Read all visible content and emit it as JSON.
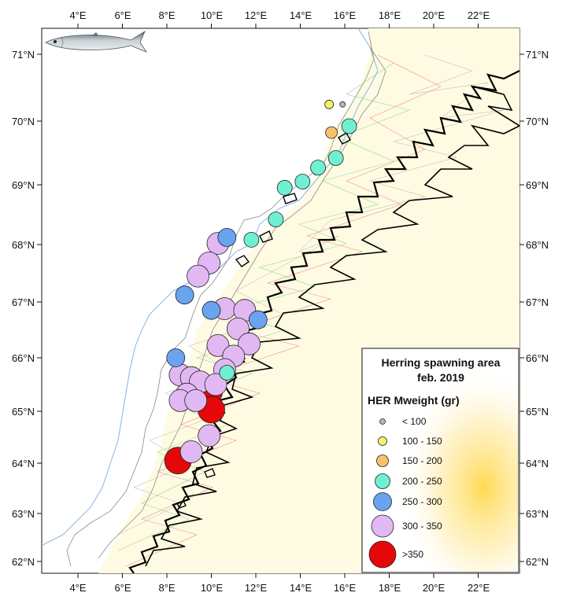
{
  "legend": {
    "title": "Herring spawning area",
    "subtitle": "feb. 2019",
    "variable": "HER Mweight (gr)",
    "classes": [
      {
        "label": "< 100",
        "color": "#b9b9b9"
      },
      {
        "label": "100 - 150",
        "color": "#f7f26b"
      },
      {
        "label": "150 - 200",
        "color": "#f5c16b"
      },
      {
        "label": "200 - 250",
        "color": "#6ff0d2"
      },
      {
        "label": "250 - 300",
        "color": "#6aa3ef"
      },
      {
        "label": "300 - 350",
        "color": "#e2b8f3"
      },
      {
        "label": ">350",
        "color": "#e4080a"
      }
    ]
  },
  "axes": {
    "x_ticks": [
      "4°E",
      "6°E",
      "8°E",
      "10°E",
      "12°E",
      "14°E",
      "16°E",
      "18°E",
      "20°E",
      "22°E"
    ],
    "y_ticks": [
      "71°N",
      "70°N",
      "69°N",
      "68°N",
      "67°N",
      "66°N",
      "65°N",
      "64°N",
      "63°N",
      "62°N"
    ]
  },
  "colors": {
    "land": "#fffbe2",
    "sea": "#ffffff",
    "coast": "#000000",
    "contour": "#8a8a8a",
    "depth_line": "#8ab3e6",
    "legend_glow": "#ffd84a"
  },
  "icon": "herring-fish-icon",
  "chart_data": {
    "type": "scatter",
    "xlabel": "",
    "ylabel": "",
    "xlim": [
      2.6,
      23.8
    ],
    "ylim": [
      61.85,
      71.45
    ],
    "size_variable": "HER Mweight (gr)",
    "classes": [
      "< 100",
      "100 - 150",
      "150 - 200",
      "200 - 250",
      "250 - 300",
      "300 - 350",
      ">350"
    ],
    "points": [
      {
        "lon": 15.9,
        "lat": 70.25,
        "class": 0
      },
      {
        "lon": 15.3,
        "lat": 70.25,
        "class": 1
      },
      {
        "lon": 15.4,
        "lat": 69.82,
        "class": 2
      },
      {
        "lon": 16.2,
        "lat": 69.92,
        "class": 3
      },
      {
        "lon": 15.6,
        "lat": 69.42,
        "class": 3
      },
      {
        "lon": 14.8,
        "lat": 69.27,
        "class": 3
      },
      {
        "lon": 14.1,
        "lat": 69.05,
        "class": 3
      },
      {
        "lon": 13.3,
        "lat": 68.95,
        "class": 3
      },
      {
        "lon": 12.9,
        "lat": 68.42,
        "class": 3
      },
      {
        "lon": 11.8,
        "lat": 68.08,
        "class": 3
      },
      {
        "lon": 10.7,
        "lat": 65.72,
        "class": 3
      },
      {
        "lon": 10.7,
        "lat": 68.12,
        "class": 4
      },
      {
        "lon": 8.8,
        "lat": 67.12,
        "class": 4
      },
      {
        "lon": 10.0,
        "lat": 66.85,
        "class": 4
      },
      {
        "lon": 12.1,
        "lat": 66.68,
        "class": 4
      },
      {
        "lon": 8.4,
        "lat": 66.0,
        "class": 4
      },
      {
        "lon": 10.3,
        "lat": 68.02,
        "class": 5
      },
      {
        "lon": 9.9,
        "lat": 67.68,
        "class": 5
      },
      {
        "lon": 9.4,
        "lat": 67.45,
        "class": 5
      },
      {
        "lon": 10.6,
        "lat": 66.88,
        "class": 5
      },
      {
        "lon": 11.5,
        "lat": 66.85,
        "class": 5
      },
      {
        "lon": 11.2,
        "lat": 66.52,
        "class": 5
      },
      {
        "lon": 10.3,
        "lat": 66.22,
        "class": 5
      },
      {
        "lon": 11.7,
        "lat": 66.25,
        "class": 5
      },
      {
        "lon": 11.0,
        "lat": 66.03,
        "class": 5
      },
      {
        "lon": 10.6,
        "lat": 65.78,
        "class": 5
      },
      {
        "lon": 8.6,
        "lat": 65.68,
        "class": 5
      },
      {
        "lon": 9.1,
        "lat": 65.63,
        "class": 5
      },
      {
        "lon": 9.5,
        "lat": 65.55,
        "class": 5
      },
      {
        "lon": 10.2,
        "lat": 65.5,
        "class": 5
      },
      {
        "lon": 8.9,
        "lat": 65.32,
        "class": 5
      },
      {
        "lon": 8.6,
        "lat": 65.2,
        "class": 5
      },
      {
        "lon": 9.3,
        "lat": 65.2,
        "class": 5
      },
      {
        "lon": 9.9,
        "lat": 64.53,
        "class": 5
      },
      {
        "lon": 9.1,
        "lat": 64.22,
        "class": 5
      },
      {
        "lon": 9.9,
        "lat": 65.37,
        "class": 6
      },
      {
        "lon": 10.0,
        "lat": 65.03,
        "class": 6
      },
      {
        "lon": 8.5,
        "lat": 64.05,
        "class": 6
      }
    ]
  }
}
